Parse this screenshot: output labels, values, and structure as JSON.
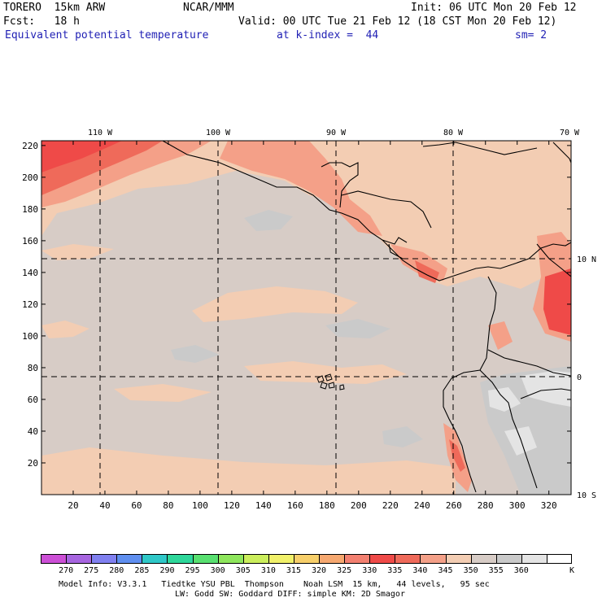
{
  "header": {
    "model": "TORERO  15km ARW",
    "center": "NCAR/MMM",
    "init": "Init: 06 UTC Mon 20 Feb 12",
    "fcst": "Fcst:   18 h",
    "valid": "Valid: 00 UTC Tue 21 Feb 12 (18 CST Mon 20 Feb 12)",
    "field": "Equivalent potential temperature",
    "level": "at k-index =  44",
    "smooth": "sm= 2"
  },
  "map": {
    "lon_labels": [
      "110 W",
      "100 W",
      "90 W",
      "80 W",
      "70 W"
    ],
    "lat_labels": [
      "10 N",
      "0",
      "10 S"
    ],
    "y_ticks": [
      "20",
      "40",
      "60",
      "80",
      "100",
      "120",
      "140",
      "160",
      "180",
      "200",
      "220"
    ],
    "x_ticks": [
      "20",
      "40",
      "60",
      "80",
      "100",
      "120",
      "140",
      "160",
      "180",
      "200",
      "220",
      "240",
      "260",
      "280",
      "300",
      "320"
    ]
  },
  "colorbar": {
    "unit": "K",
    "labels": [
      "270",
      "275",
      "280",
      "285",
      "290",
      "295",
      "300",
      "305",
      "310",
      "315",
      "320",
      "325",
      "330",
      "335",
      "340",
      "345",
      "350",
      "355",
      "360"
    ],
    "colors": [
      "#cc4fd6",
      "#a765e0",
      "#8080f0",
      "#5f8ff0",
      "#2fc8c8",
      "#2ed79a",
      "#58e070",
      "#8ee65c",
      "#cbee5c",
      "#f1f16a",
      "#f7cf6a",
      "#f6a870",
      "#f38070",
      "#ef4a48",
      "#ef6a5a",
      "#f4a088",
      "#f3cdb3",
      "#d7ccc6",
      "#cacaca",
      "#e4e4e4",
      "#ffffff"
    ]
  },
  "footer": {
    "line1": "Model Info: V3.3.1   Tiedtke YSU PBL  Thompson    Noah LSM  15 km,   44 levels,   95 sec",
    "line2": "LW: Godd SW: Goddard DIFF: simple KM: 2D Smagor"
  }
}
